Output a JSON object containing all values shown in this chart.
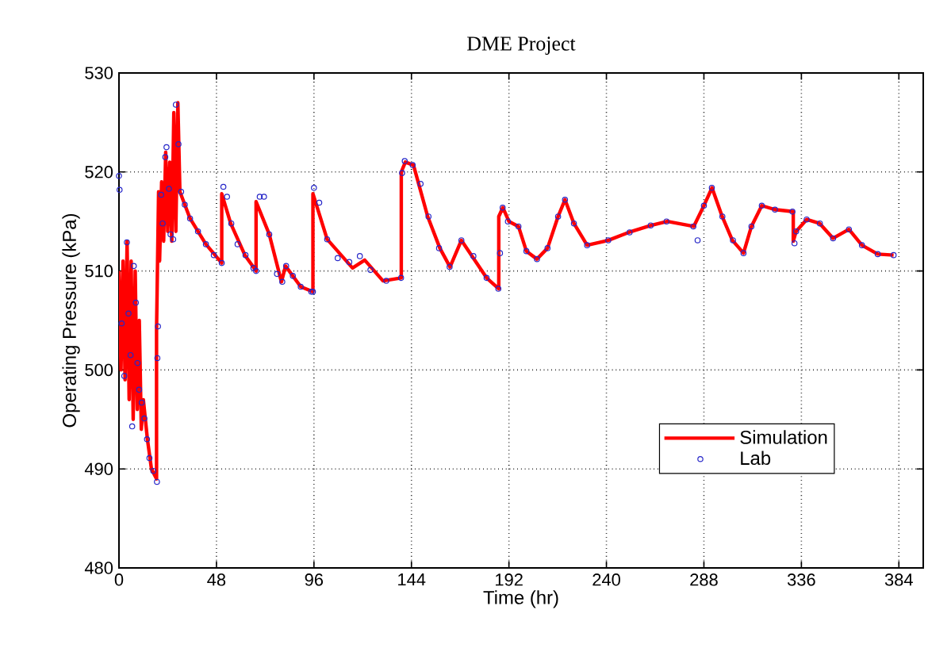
{
  "chart_data": {
    "type": "line",
    "title": "DME Project",
    "xlabel": "Time (hr)",
    "ylabel": "Operating Pressure (kPa)",
    "xlim": [
      0,
      396
    ],
    "ylim": [
      480,
      530
    ],
    "xticks": [
      0,
      48,
      96,
      144,
      192,
      240,
      288,
      336,
      384
    ],
    "yticks": [
      480,
      490,
      500,
      510,
      520,
      530
    ],
    "grid": true,
    "legend": "bottom right",
    "series": [
      {
        "name": "Simulation",
        "color": "#ff0000",
        "x": [
          0,
          1,
          2,
          3,
          4,
          5,
          6,
          7,
          8,
          9,
          10,
          11,
          12,
          14,
          16,
          18.5,
          18.5,
          19.5,
          20,
          21,
          22,
          23,
          24,
          25,
          26,
          27,
          28,
          29,
          30,
          35,
          42.8,
          50.6,
          50.6,
          55,
          62,
          67.5,
          67.5,
          74,
          80,
          82,
          89.5,
          95.5,
          95.5,
          102.5,
          115,
          121,
          130,
          139,
          139,
          141,
          145,
          152,
          158,
          163,
          168.6,
          181,
          187,
          187,
          189,
          192,
          196.7,
          200.6,
          205.8,
          211,
          216.2,
          219.6,
          224,
          230.5,
          241,
          251,
          262,
          270,
          283,
          288,
          292,
          297,
          302,
          307.5,
          311.4,
          316.5,
          323,
          332,
          332,
          333.4,
          338.6,
          345,
          351.6,
          359.4,
          365.8,
          373.6,
          381.4
        ],
        "values": [
          510,
          500,
          511,
          499,
          513,
          497,
          511,
          495,
          510,
          496,
          505,
          494,
          497,
          493,
          490,
          489,
          504,
          518,
          511,
          519,
          513,
          522,
          514,
          521,
          513,
          526,
          514,
          527,
          518,
          515.3,
          512.7,
          510.8,
          517.8,
          514.8,
          511.6,
          510,
          517,
          513.7,
          508.9,
          510.5,
          508.4,
          507.9,
          517.8,
          513.2,
          510.3,
          511.1,
          509,
          509.3,
          520,
          521,
          520.7,
          515.5,
          512.3,
          510.4,
          513.1,
          509.3,
          508.2,
          515.5,
          516.4,
          515,
          514.5,
          512,
          511.2,
          512.3,
          515.5,
          517.2,
          514.8,
          512.6,
          513.1,
          513.9,
          514.6,
          515,
          514.5,
          516.6,
          518.4,
          515.5,
          513.1,
          511.8,
          514.5,
          516.6,
          516.2,
          516,
          513,
          514,
          515.2,
          514.8,
          513.3,
          514.2,
          512.6,
          511.7,
          511.6
        ]
      },
      {
        "name": "Lab",
        "type": "scatter",
        "marker": "circle",
        "color": "#2626c8",
        "x": [
          0,
          0.3,
          1.3,
          2.6,
          3.9,
          4.7,
          5.7,
          6.5,
          7.3,
          8.3,
          9.1,
          9.9,
          11.2,
          12.5,
          13.8,
          15,
          16.9,
          18.7,
          18.9,
          19.2,
          20.8,
          21.5,
          22.8,
          23.4,
          24.6,
          25.4,
          26.7,
          28,
          29.3,
          30.6,
          32.4,
          35,
          38.9,
          42.8,
          46.7,
          50.6,
          51.4,
          53.2,
          55.3,
          58.4,
          62.3,
          66.2,
          67.5,
          69.3,
          71.4,
          74,
          77.8,
          80.4,
          82.3,
          85.6,
          89.5,
          94.7,
          95.5,
          96,
          98.6,
          102.5,
          107.7,
          113.4,
          118.6,
          123.8,
          131.6,
          138.9,
          139.4,
          140.7,
          144.6,
          148.5,
          152.4,
          157.6,
          162.8,
          168.6,
          174.5,
          181,
          186.8,
          187.6,
          188.9,
          191.5,
          196.7,
          200.6,
          205.8,
          211,
          216.2,
          219.6,
          224,
          230.5,
          240.9,
          251.4,
          261.8,
          269.6,
          282.8,
          284.9,
          288,
          291.9,
          297.1,
          302.3,
          307.5,
          311.4,
          316.5,
          323,
          331.6,
          332.6,
          333.4,
          338.6,
          345.1,
          351.6,
          359.4,
          365.8,
          373.6,
          381.4
        ],
        "values": [
          519.6,
          518.2,
          504.7,
          499.4,
          512.9,
          505.7,
          501.5,
          494.3,
          510.5,
          506.8,
          500.7,
          498,
          496.7,
          495.1,
          493,
          491.1,
          489.8,
          488.7,
          501.2,
          504.4,
          517.7,
          514.8,
          521.5,
          522.5,
          518.3,
          513.7,
          513.2,
          526.8,
          522.8,
          518,
          516.7,
          515.3,
          514,
          512.7,
          511.6,
          510.8,
          518.5,
          517.5,
          514.8,
          512.7,
          511.6,
          510.3,
          510,
          517.5,
          517.5,
          513.7,
          509.7,
          508.9,
          510.5,
          509.5,
          508.4,
          507.9,
          507.9,
          518.4,
          516.9,
          513.2,
          511.3,
          510.9,
          511.5,
          510.1,
          509,
          509.3,
          519.9,
          521.1,
          520.7,
          518.8,
          515.5,
          512.3,
          510.4,
          513.1,
          511.5,
          509.3,
          508.2,
          511.8,
          516.4,
          515,
          514.5,
          512,
          511.2,
          512.3,
          515.5,
          517.2,
          514.8,
          512.6,
          513.1,
          513.9,
          514.6,
          515,
          514.5,
          513.1,
          516.6,
          518.4,
          515.5,
          513.1,
          511.8,
          514.5,
          516.6,
          516.2,
          516,
          512.8,
          514,
          515.2,
          514.8,
          513.3,
          514.2,
          512.6,
          511.7,
          511.6
        ]
      }
    ]
  }
}
